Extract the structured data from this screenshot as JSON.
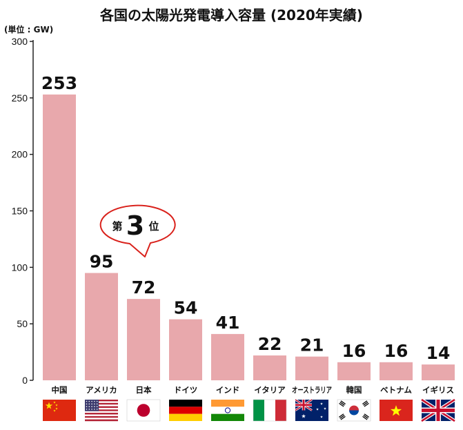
{
  "chart_data": {
    "type": "bar",
    "title": "各国の太陽光発電導入容量 (2020年実績)",
    "ylabel": "(単位 : GW)",
    "xlabel": "",
    "categories": [
      "中国",
      "アメリカ",
      "日本",
      "ドイツ",
      "インド",
      "イタリア",
      "オーストラリア",
      "韓国",
      "ベトナム",
      "イギリス"
    ],
    "values": [
      253,
      95,
      72,
      54,
      41,
      22,
      21,
      16,
      16,
      14
    ],
    "ylim": [
      0,
      300
    ],
    "yticks": [
      0,
      50,
      100,
      150,
      200,
      250,
      300
    ],
    "grid": false,
    "legend": "none",
    "bar_color": "#e8a8ac",
    "highlight_category": "日本",
    "highlight_label_color": "#d9211b",
    "flag_icons": [
      "flag-china-icon",
      "flag-usa-icon",
      "flag-japan-icon",
      "flag-germany-icon",
      "flag-india-icon",
      "flag-italy-icon",
      "flag-australia-icon",
      "flag-south-korea-icon",
      "flag-vietnam-icon",
      "flag-uk-icon"
    ],
    "callout": {
      "prefix": "第",
      "number": "3",
      "suffix": "位",
      "border_color": "#d9211b"
    }
  }
}
